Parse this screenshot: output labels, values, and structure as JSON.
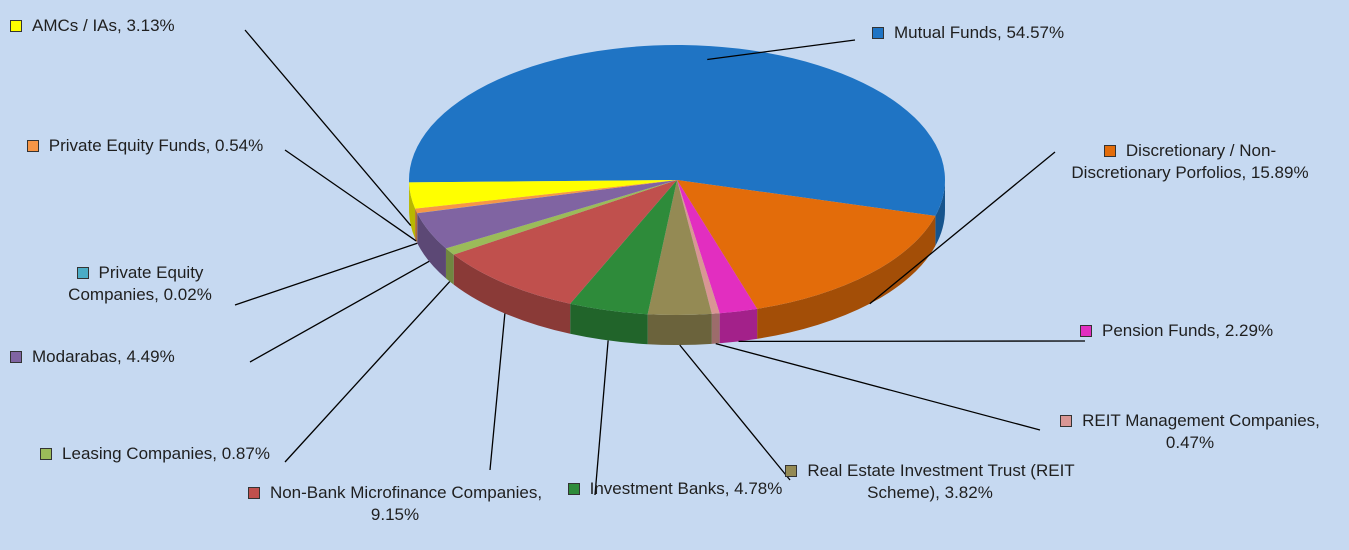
{
  "chart_data": {
    "type": "pie",
    "values": [
      54.57,
      15.89,
      2.29,
      0.47,
      3.82,
      4.78,
      9.15,
      0.87,
      4.49,
      0.02,
      0.54,
      3.13
    ],
    "value_labels": [
      "Mutual Funds, 54.57%",
      "Discretionary / Non-Discretionary Porfolios, 15.89%",
      "Pension Funds, 2.29%",
      "REIT Management Companies, 0.47%",
      "Real Estate Investment Trust (REIT Scheme), 3.82%",
      "Investment Banks, 4.78%",
      "Non-Bank Microfinance Companies, 9.15%",
      "Leasing Companies, 0.87%",
      "Modarabas, 4.49%",
      "Private Equity Companies, 0.02%",
      "Private Equity Funds, 0.54%",
      "AMCs / IAs, 3.13%"
    ],
    "colors": [
      "#1f74c4",
      "#e36c0a",
      "#e22ec0",
      "#d99694",
      "#948a54",
      "#2e8b3a",
      "#c0504d",
      "#9bbb59",
      "#8064a2",
      "#4bacc6",
      "#f79646",
      "#ffff00"
    ]
  }
}
